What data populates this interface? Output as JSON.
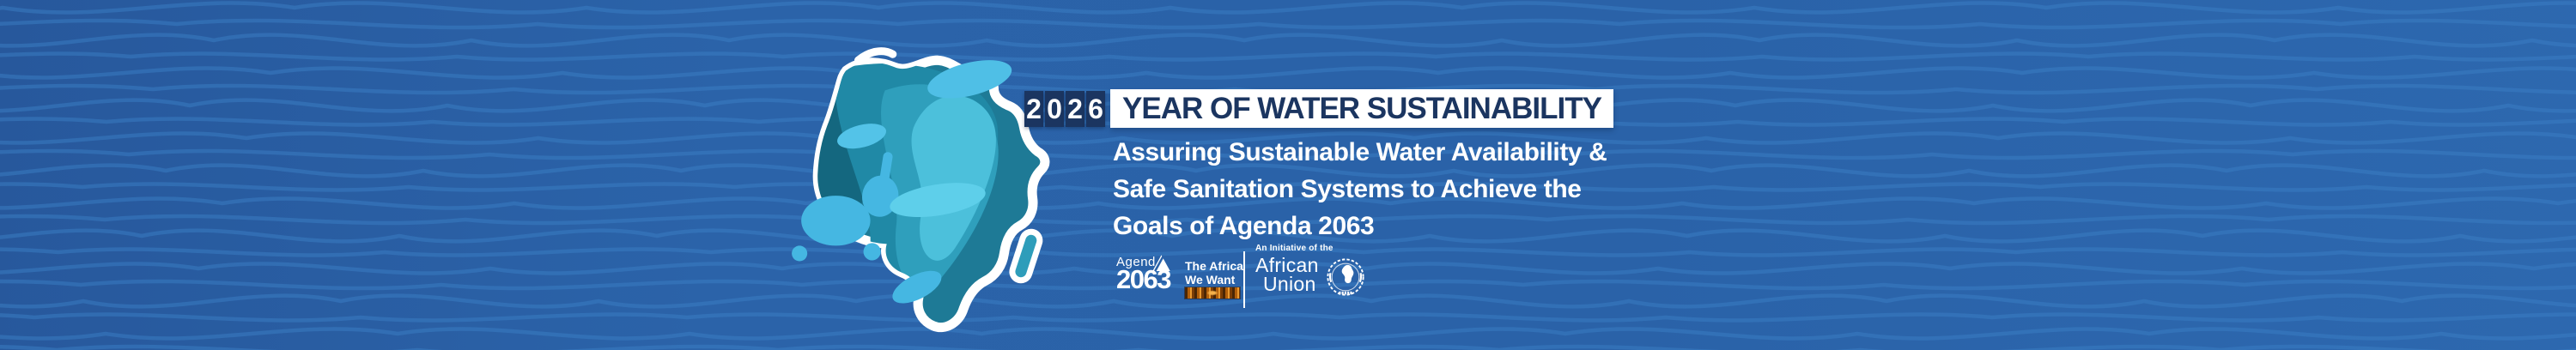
{
  "banner": {
    "year_digits": [
      "2",
      "0",
      "2",
      "6"
    ],
    "title": "YEAR OF WATER SUSTAINABILITY",
    "subtitle_lines": [
      "Assuring Sustainable Water Availability &",
      "Safe Sanitation Systems to Achieve the",
      "Goals of Agenda 2063"
    ]
  },
  "logos": {
    "agenda2063": {
      "word": "Agend",
      "year": "2063",
      "tagline": [
        "The Africa",
        "We Want"
      ]
    },
    "african_union": {
      "initiative": "An Initiative of the",
      "name": [
        "African",
        "Union"
      ]
    }
  },
  "icons": {
    "pyramid_a": "pyramid-a-icon",
    "au_emblem": "african-union-emblem-icon",
    "africa_map": "africa-water-map-illustration"
  },
  "colors": {
    "background_blue": "#2A62A8",
    "wave_line_blue": "#3B7FC5",
    "navy": "#1B3560",
    "white": "#FFFFFF",
    "teal_dark": "#14677F",
    "teal_base": "#1E7A96",
    "teal_mid": "#2F9FBC",
    "cyan_light": "#4CC0DB",
    "splash_blue": "#45B7E2",
    "kente_orange": "#B15E0A"
  }
}
